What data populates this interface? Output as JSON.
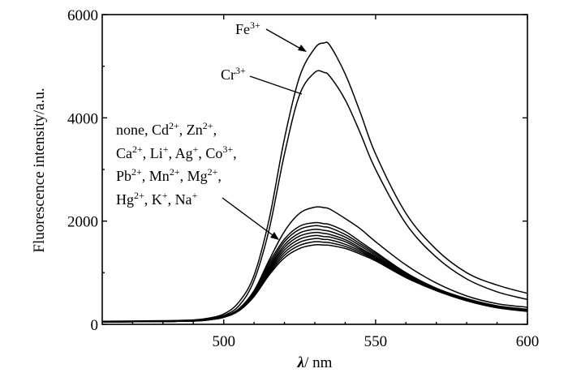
{
  "chart_data": {
    "type": "line",
    "xlabel_symbol": "λ",
    "xlabel_rest": "/ nm",
    "ylabel": "Fluorescence intensity/a.u.",
    "xlim": [
      460,
      600
    ],
    "ylim": [
      0,
      6000
    ],
    "x_ticks": [
      500,
      550,
      600
    ],
    "y_ticks": [
      0,
      2000,
      4000,
      6000
    ],
    "grid": false,
    "x": [
      460,
      480,
      490,
      495,
      500,
      505,
      510,
      515,
      520,
      525,
      530,
      533,
      535,
      540,
      545,
      550,
      560,
      570,
      580,
      590,
      600
    ],
    "series": [
      {
        "name": "Fe3+",
        "values": [
          60,
          70,
          85,
          120,
          200,
          430,
          950,
          2050,
          3600,
          4800,
          5350,
          5450,
          5400,
          4850,
          4100,
          3300,
          2150,
          1450,
          1000,
          760,
          600
        ]
      },
      {
        "name": "Cr3+",
        "values": [
          55,
          62,
          72,
          100,
          170,
          360,
          850,
          1850,
          3300,
          4450,
          4880,
          4880,
          4800,
          4350,
          3700,
          3000,
          1950,
          1300,
          880,
          630,
          480
        ]
      },
      {
        "values": [
          45,
          55,
          65,
          90,
          150,
          300,
          650,
          1250,
          1800,
          2150,
          2270,
          2260,
          2230,
          2050,
          1850,
          1600,
          1150,
          800,
          550,
          400,
          330
        ]
      },
      {
        "values": [
          45,
          55,
          65,
          90,
          150,
          300,
          650,
          1200,
          1650,
          1900,
          1970,
          1950,
          1930,
          1800,
          1600,
          1400,
          1000,
          700,
          500,
          360,
          290
        ]
      },
      {
        "values": [
          45,
          55,
          65,
          90,
          150,
          290,
          630,
          1150,
          1600,
          1840,
          1910,
          1890,
          1870,
          1740,
          1560,
          1370,
          980,
          690,
          490,
          350,
          280
        ]
      },
      {
        "values": [
          45,
          55,
          65,
          90,
          145,
          285,
          610,
          1110,
          1540,
          1770,
          1840,
          1820,
          1800,
          1690,
          1520,
          1340,
          960,
          680,
          480,
          345,
          275
        ]
      },
      {
        "values": [
          45,
          55,
          65,
          90,
          145,
          280,
          600,
          1080,
          1490,
          1710,
          1780,
          1760,
          1740,
          1640,
          1480,
          1310,
          945,
          670,
          475,
          340,
          270
        ]
      },
      {
        "values": [
          45,
          55,
          65,
          90,
          140,
          275,
          585,
          1050,
          1440,
          1650,
          1720,
          1700,
          1690,
          1600,
          1450,
          1290,
          935,
          665,
          470,
          335,
          265
        ]
      },
      {
        "values": [
          45,
          55,
          65,
          90,
          140,
          270,
          570,
          1020,
          1390,
          1590,
          1660,
          1645,
          1635,
          1550,
          1420,
          1270,
          925,
          660,
          465,
          330,
          260
        ]
      },
      {
        "values": [
          45,
          55,
          65,
          85,
          135,
          265,
          555,
          990,
          1340,
          1530,
          1600,
          1590,
          1580,
          1510,
          1390,
          1250,
          915,
          655,
          460,
          325,
          255
        ]
      },
      {
        "values": [
          45,
          55,
          65,
          85,
          135,
          260,
          540,
          960,
          1290,
          1470,
          1540,
          1535,
          1530,
          1470,
          1360,
          1230,
          905,
          650,
          455,
          320,
          250
        ]
      }
    ],
    "annotations": {
      "fe": {
        "base": "Fe",
        "sup": "3+"
      },
      "cr": {
        "base": "Cr",
        "sup": "3+"
      },
      "ions_line1": [
        {
          "t": "none, Cd"
        },
        {
          "s": "2+"
        },
        {
          "t": ", Zn"
        },
        {
          "s": "2+"
        },
        {
          "t": ","
        }
      ],
      "ions_line2": [
        {
          "t": "Ca"
        },
        {
          "s": "2+"
        },
        {
          "t": ", Li"
        },
        {
          "s": "+"
        },
        {
          "t": ", Ag"
        },
        {
          "s": "+"
        },
        {
          "t": ", Co"
        },
        {
          "s": "3+"
        },
        {
          "t": ","
        }
      ],
      "ions_line3": [
        {
          "t": "Pb"
        },
        {
          "s": "2+"
        },
        {
          "t": ", Mn"
        },
        {
          "s": "2+"
        },
        {
          "t": ", Mg"
        },
        {
          "s": "2+"
        },
        {
          "t": ","
        }
      ],
      "ions_line4": [
        {
          "t": "Hg"
        },
        {
          "s": "2+"
        },
        {
          "t": ", K"
        },
        {
          "s": "+"
        },
        {
          "t": ", Na"
        },
        {
          "s": "+"
        }
      ]
    }
  }
}
